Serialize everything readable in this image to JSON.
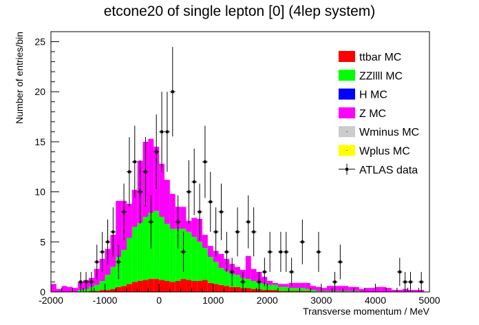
{
  "chart_data": {
    "type": "bar",
    "title": "etcone20 of single lepton [0] (4lep system)",
    "xlabel": "Transverse momentum / MeV",
    "ylabel": "Number of entries/bin",
    "xlim": [
      -2000,
      5000
    ],
    "ylim": [
      0,
      26
    ],
    "bin_width": 100,
    "x_ticks": [
      -2000,
      -1000,
      0,
      1000,
      2000,
      3000,
      4000,
      5000
    ],
    "y_ticks": [
      0,
      5,
      10,
      15,
      20,
      25
    ],
    "legend_position": "top-right",
    "colors": {
      "ttbar MC": "#ff0000",
      "ZZllll MC": "#00ff00",
      "H MC": "#0000ff",
      "Z MC": "#ff00ff",
      "Wminus MC": "#cccccc",
      "Wplus MC": "#ffff00",
      "ATLAS data": "#000000"
    },
    "x_bin_centers": [
      -1950,
      -1850,
      -1750,
      -1650,
      -1550,
      -1450,
      -1350,
      -1250,
      -1150,
      -1050,
      -950,
      -850,
      -750,
      -650,
      -550,
      -450,
      -350,
      -250,
      -150,
      -50,
      50,
      150,
      250,
      350,
      450,
      550,
      650,
      750,
      850,
      950,
      1050,
      1150,
      1250,
      1350,
      1450,
      1550,
      1650,
      1750,
      1850,
      1950,
      2050,
      2150,
      2250,
      2350,
      2450,
      2550,
      2650,
      2750,
      2850,
      2950,
      3050,
      3150,
      3250,
      3350,
      3450,
      3550,
      3650,
      3750,
      3850,
      3950,
      4050,
      4150,
      4250,
      4350,
      4450,
      4550,
      4650,
      4750,
      4850,
      4950
    ],
    "series": [
      {
        "name": "ttbar MC",
        "values": [
          0,
          0,
          0,
          0,
          0,
          0,
          0,
          0.1,
          0.1,
          0.2,
          0.2,
          0.3,
          0.5,
          0.6,
          0.8,
          1.0,
          1.1,
          1.2,
          1.3,
          1.3,
          1.2,
          1.1,
          1.0,
          1.1,
          1.3,
          1.2,
          1.1,
          1.1,
          1.2,
          0.9,
          0.8,
          0.7,
          0.6,
          0.5,
          0.5,
          0.4,
          0.4,
          0.3,
          0.3,
          0.2,
          0.2,
          0.2,
          0.1,
          0.1,
          0.1,
          0.1,
          0.1,
          0.1,
          0,
          0,
          0,
          0,
          0,
          0,
          0,
          0,
          0,
          0,
          0,
          0,
          0,
          0,
          0,
          0,
          0,
          0,
          0,
          0,
          0,
          0
        ]
      },
      {
        "name": "ZZllll MC",
        "values": [
          0,
          0,
          0,
          0,
          0,
          0.2,
          0.3,
          0.4,
          0.6,
          0.9,
          1.5,
          2.2,
          3.0,
          3.6,
          4.6,
          5.5,
          5.8,
          6.3,
          6.6,
          6.8,
          6.3,
          5.7,
          5.3,
          5.2,
          5.0,
          4.8,
          4.4,
          3.9,
          3.2,
          2.6,
          2.2,
          1.7,
          1.5,
          1.3,
          1.2,
          1.0,
          0.9,
          0.8,
          0.7,
          0.6,
          0.5,
          0.5,
          0.4,
          0.4,
          0.3,
          0.3,
          0.3,
          0.2,
          0.2,
          0.1,
          0.1,
          0.1,
          0.1,
          0.1,
          0.1,
          0.1,
          0.1,
          0,
          0,
          0,
          0,
          0,
          0,
          0,
          0,
          0,
          0,
          0,
          0,
          0
        ]
      },
      {
        "name": "H MC",
        "values": [
          0,
          0,
          0,
          0,
          0,
          0,
          0,
          0,
          0,
          0,
          0,
          0,
          0,
          0,
          0,
          0,
          0,
          0,
          0,
          0,
          0,
          0,
          0,
          0,
          0,
          0,
          0,
          0,
          0,
          0,
          0,
          0,
          0,
          0,
          0,
          0,
          0,
          0,
          0,
          0,
          0,
          0,
          0,
          0,
          0,
          0,
          0,
          0,
          0,
          0,
          0,
          0,
          0,
          0,
          0,
          0,
          0,
          0,
          0,
          0,
          0,
          0,
          0,
          0,
          0,
          0,
          0,
          0,
          0,
          0
        ]
      },
      {
        "name": "Z MC",
        "values": [
          0.8,
          0.3,
          0.6,
          0.5,
          0.4,
          0.8,
          0.9,
          0.9,
          1.6,
          2.2,
          2.6,
          3.2,
          5.6,
          4.9,
          3.4,
          3.7,
          6.2,
          7.5,
          7.4,
          6.4,
          5.3,
          4.4,
          3.5,
          2.2,
          2.2,
          1.1,
          1.9,
          2.3,
          1.3,
          1.1,
          1.1,
          1.4,
          1.2,
          1.0,
          0.8,
          0.8,
          2.3,
          1.2,
          1.0,
          0.7,
          0.4,
          0.2,
          0.3,
          0.3,
          0.5,
          0.5,
          0.5,
          0.6,
          0.4,
          0.4,
          0.3,
          0.5,
          0.5,
          0.5,
          0.5,
          0.4,
          0.4,
          0.3,
          0.4,
          0.4,
          0.5,
          0.5,
          0.4,
          0.2,
          0.2,
          0.3,
          0.2,
          0.2,
          0.2,
          0
        ]
      },
      {
        "name": "Wminus MC",
        "values": [
          0,
          0,
          0,
          0,
          0,
          0,
          0,
          0,
          0,
          0,
          0,
          0,
          0,
          0,
          0,
          0,
          0,
          0,
          0,
          0,
          0,
          0,
          0,
          0,
          0,
          0,
          0,
          0,
          0,
          0,
          0,
          0,
          0,
          0,
          0,
          0,
          0,
          0,
          0,
          0,
          0,
          0,
          0,
          0,
          0,
          0,
          0,
          0,
          0,
          0,
          0,
          0,
          0,
          0,
          0,
          0,
          0,
          0,
          0,
          0,
          0,
          0,
          0,
          0,
          0,
          0,
          0,
          0,
          0,
          0
        ]
      },
      {
        "name": "Wplus MC",
        "values": [
          0,
          0,
          0,
          0,
          0,
          0,
          0,
          0,
          0,
          0,
          0,
          0,
          0,
          0,
          0,
          0,
          0,
          0,
          0,
          0,
          0,
          0,
          0,
          0,
          0,
          0,
          0,
          0,
          0,
          0,
          0,
          0,
          0,
          0,
          0,
          0,
          0,
          0,
          0,
          0,
          0,
          0,
          0,
          0,
          0,
          0,
          0,
          0,
          0,
          0,
          0,
          0,
          0,
          0,
          0,
          0,
          0,
          0,
          0,
          0,
          0,
          0,
          0,
          0,
          0,
          0,
          0,
          0,
          0,
          0
        ]
      }
    ],
    "data_series": {
      "name": "ATLAS data",
      "points": [
        {
          "x": -1450,
          "y": 1
        },
        {
          "x": -1350,
          "y": 1
        },
        {
          "x": -1250,
          "y": 1
        },
        {
          "x": -1150,
          "y": 3
        },
        {
          "x": -1050,
          "y": 4
        },
        {
          "x": -950,
          "y": 5
        },
        {
          "x": -850,
          "y": 6
        },
        {
          "x": -750,
          "y": 3
        },
        {
          "x": -650,
          "y": 8
        },
        {
          "x": -550,
          "y": 12
        },
        {
          "x": -450,
          "y": 13
        },
        {
          "x": -350,
          "y": 10
        },
        {
          "x": -250,
          "y": 12
        },
        {
          "x": -150,
          "y": 7
        },
        {
          "x": -50,
          "y": 14
        },
        {
          "x": 50,
          "y": 16
        },
        {
          "x": 150,
          "y": 16
        },
        {
          "x": 250,
          "y": 20
        },
        {
          "x": 350,
          "y": 7
        },
        {
          "x": 450,
          "y": 4
        },
        {
          "x": 550,
          "y": 10
        },
        {
          "x": 650,
          "y": 11
        },
        {
          "x": 750,
          "y": 8
        },
        {
          "x": 850,
          "y": 13
        },
        {
          "x": 950,
          "y": 9
        },
        {
          "x": 1050,
          "y": 6
        },
        {
          "x": 1150,
          "y": 8
        },
        {
          "x": 1250,
          "y": 4
        },
        {
          "x": 1350,
          "y": 2
        },
        {
          "x": 1450,
          "y": 6
        },
        {
          "x": 1550,
          "y": 1
        },
        {
          "x": 1650,
          "y": 7
        },
        {
          "x": 1750,
          "y": 6
        },
        {
          "x": 1850,
          "y": 1
        },
        {
          "x": 1950,
          "y": 2
        },
        {
          "x": 2050,
          "y": 4
        },
        {
          "x": 2250,
          "y": 4
        },
        {
          "x": 2350,
          "y": 4
        },
        {
          "x": 2450,
          "y": 2
        },
        {
          "x": 2650,
          "y": 5
        },
        {
          "x": 2950,
          "y": 4
        },
        {
          "x": 3250,
          "y": 1
        },
        {
          "x": 3350,
          "y": 3
        },
        {
          "x": 4450,
          "y": 2
        },
        {
          "x": 4550,
          "y": 1
        },
        {
          "x": 4650,
          "y": 1
        },
        {
          "x": 4850,
          "y": 1
        }
      ]
    },
    "legend": [
      {
        "label": "ttbar MC",
        "swatch": "box"
      },
      {
        "label": "ZZllll MC",
        "swatch": "box"
      },
      {
        "label": "H MC",
        "swatch": "box"
      },
      {
        "label": "Z MC",
        "swatch": "box"
      },
      {
        "label": "Wminus MC",
        "swatch": "box"
      },
      {
        "label": "Wplus MC",
        "swatch": "box"
      },
      {
        "label": "ATLAS data",
        "swatch": "marker"
      }
    ]
  }
}
